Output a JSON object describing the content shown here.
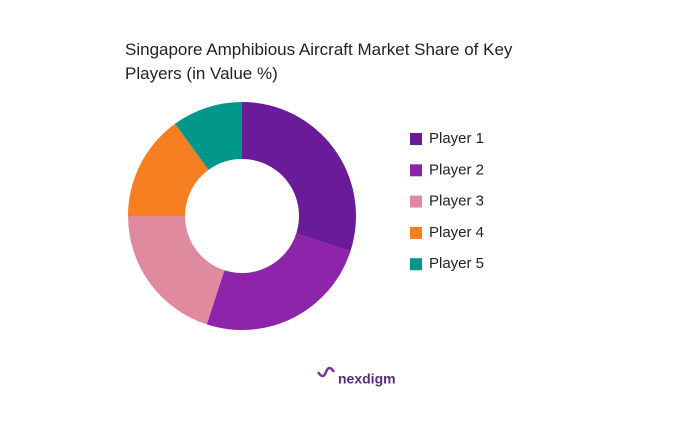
{
  "chart_data": {
    "type": "donut",
    "title": "Singapore Amphibious Aircraft Market Share of Key Players (in Value %)",
    "categories": [
      "Player 1",
      "Player 2",
      "Player 3",
      "Player 4",
      "Player 5"
    ],
    "values": [
      30,
      25,
      20,
      15,
      10
    ],
    "colors": [
      "#6a1b9a",
      "#8e24aa",
      "#e08aa0",
      "#f57f20",
      "#00968a"
    ],
    "legend": "right"
  },
  "logo": "nexdigm"
}
